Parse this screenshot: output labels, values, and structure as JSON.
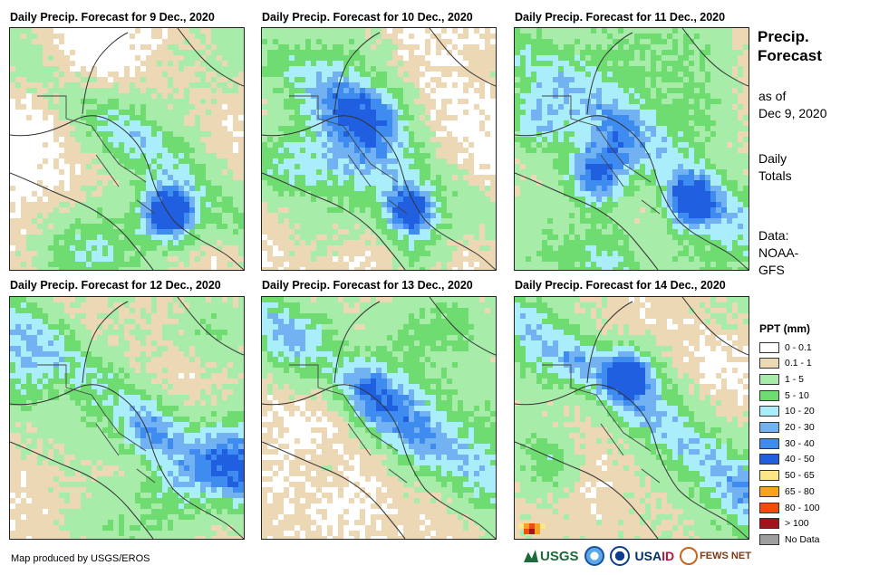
{
  "panels": [
    {
      "title": "Daily Precip. Forecast for 9 Dec., 2020",
      "scene": 0
    },
    {
      "title": "Daily Precip. Forecast for 10 Dec., 2020",
      "scene": 1
    },
    {
      "title": "Daily Precip. Forecast for 11 Dec., 2020",
      "scene": 2
    },
    {
      "title": "Daily Precip. Forecast for 12 Dec., 2020",
      "scene": 3
    },
    {
      "title": "Daily Precip. Forecast for 13 Dec., 2020",
      "scene": 4
    },
    {
      "title": "Daily Precip. Forecast for 14 Dec., 2020",
      "scene": 5
    }
  ],
  "sidebar": {
    "title_line1": "Precip.",
    "title_line2": "Forecast",
    "asof_line1": "as of",
    "asof_line2": "Dec 9, 2020",
    "totals_line1": "Daily",
    "totals_line2": "Totals",
    "data_line1": "Data:",
    "data_line2": "NOAA-",
    "data_line3": "GFS"
  },
  "legend": {
    "title": "PPT (mm)",
    "items": [
      {
        "label": "0 - 0.1",
        "color": "#ffffff"
      },
      {
        "label": "0.1 - 1",
        "color": "#ecd8b4"
      },
      {
        "label": "1 - 5",
        "color": "#a8ecaa"
      },
      {
        "label": "5 - 10",
        "color": "#6fdc72"
      },
      {
        "label": "10 - 20",
        "color": "#a9eefa"
      },
      {
        "label": "20 - 30",
        "color": "#72b2f2"
      },
      {
        "label": "30 - 40",
        "color": "#3f8cf0"
      },
      {
        "label": "40 - 50",
        "color": "#1f5fe0"
      },
      {
        "label": "50 - 65",
        "color": "#fde58a"
      },
      {
        "label": "65 - 80",
        "color": "#f9a31d"
      },
      {
        "label": "80 - 100",
        "color": "#f54a0f"
      },
      {
        "label": "> 100",
        "color": "#a3131b"
      },
      {
        "label": "No Data",
        "color": "#9e9e9e"
      }
    ]
  },
  "credit": "Map produced by USGS/EROS",
  "logos": {
    "usgs": "USGS",
    "usaid_a": "USA",
    "usaid_b": "ID",
    "fews": "FEWS NET"
  }
}
